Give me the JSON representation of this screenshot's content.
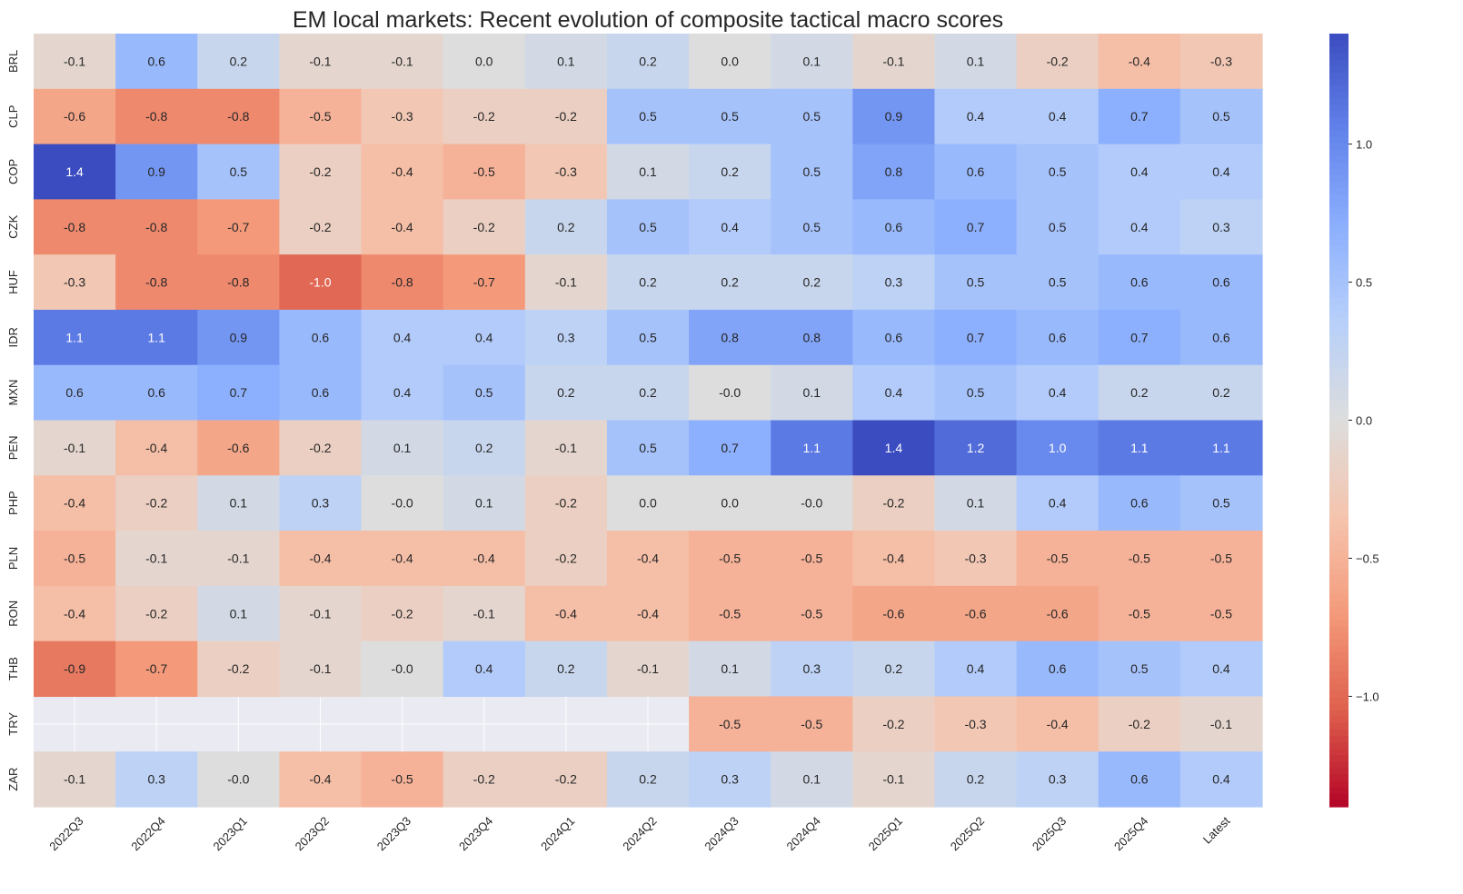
{
  "chart_data": {
    "type": "heatmap",
    "title": "EM local markets: Recent evolution of composite tactical macro scores",
    "xlabel": "",
    "ylabel": "",
    "colormap": "coolwarm_r",
    "colors": {
      "high": "#3b4cc0",
      "mid": "#dddddd",
      "low": "#b40426",
      "missing": "#eaeaf2"
    },
    "vmin": -1.4,
    "vmax": 1.4,
    "colorbar_ticks": [
      "1.0",
      "0.5",
      "0.0",
      "−0.5",
      "−1.0"
    ],
    "colorbar_tick_values": [
      1.0,
      0.5,
      0.0,
      -0.5,
      -1.0
    ],
    "columns": [
      "2022Q3",
      "2022Q4",
      "2023Q1",
      "2023Q2",
      "2023Q3",
      "2023Q4",
      "2024Q1",
      "2024Q2",
      "2024Q3",
      "2024Q4",
      "2025Q1",
      "2025Q2",
      "2025Q3",
      "2025Q4",
      "Latest"
    ],
    "rows": [
      "BRL",
      "CLP",
      "COP",
      "CZK",
      "HUF",
      "IDR",
      "MXN",
      "PEN",
      "PHP",
      "PLN",
      "RON",
      "THB",
      "TRY",
      "ZAR"
    ],
    "values": [
      [
        "-0.1",
        "0.6",
        "0.2",
        "-0.1",
        "-0.1",
        "0.0",
        "0.1",
        "0.2",
        "0.0",
        "0.1",
        "-0.1",
        "0.1",
        "-0.2",
        "-0.4",
        "-0.3"
      ],
      [
        "-0.6",
        "-0.8",
        "-0.8",
        "-0.5",
        "-0.3",
        "-0.2",
        "-0.2",
        "0.5",
        "0.5",
        "0.5",
        "0.9",
        "0.4",
        "0.4",
        "0.7",
        "0.5"
      ],
      [
        "1.4",
        "0.9",
        "0.5",
        "-0.2",
        "-0.4",
        "-0.5",
        "-0.3",
        "0.1",
        "0.2",
        "0.5",
        "0.8",
        "0.6",
        "0.5",
        "0.4",
        "0.4"
      ],
      [
        "-0.8",
        "-0.8",
        "-0.7",
        "-0.2",
        "-0.4",
        "-0.2",
        "0.2",
        "0.5",
        "0.4",
        "0.5",
        "0.6",
        "0.7",
        "0.5",
        "0.4",
        "0.3"
      ],
      [
        "-0.3",
        "-0.8",
        "-0.8",
        "-1.0",
        "-0.8",
        "-0.7",
        "-0.1",
        "0.2",
        "0.2",
        "0.2",
        "0.3",
        "0.5",
        "0.5",
        "0.6",
        "0.6"
      ],
      [
        "1.1",
        "1.1",
        "0.9",
        "0.6",
        "0.4",
        "0.4",
        "0.3",
        "0.5",
        "0.8",
        "0.8",
        "0.6",
        "0.7",
        "0.6",
        "0.7",
        "0.6"
      ],
      [
        "0.6",
        "0.6",
        "0.7",
        "0.6",
        "0.4",
        "0.5",
        "0.2",
        "0.2",
        "-0.0",
        "0.1",
        "0.4",
        "0.5",
        "0.4",
        "0.2",
        "0.2"
      ],
      [
        "-0.1",
        "-0.4",
        "-0.6",
        "-0.2",
        "0.1",
        "0.2",
        "-0.1",
        "0.5",
        "0.7",
        "1.1",
        "1.4",
        "1.2",
        "1.0",
        "1.1",
        "1.1"
      ],
      [
        "-0.4",
        "-0.2",
        "0.1",
        "0.3",
        "-0.0",
        "0.1",
        "-0.2",
        "0.0",
        "0.0",
        "-0.0",
        "-0.2",
        "0.1",
        "0.4",
        "0.6",
        "0.5"
      ],
      [
        "-0.5",
        "-0.1",
        "-0.1",
        "-0.4",
        "-0.4",
        "-0.4",
        "-0.2",
        "-0.4",
        "-0.5",
        "-0.5",
        "-0.4",
        "-0.3",
        "-0.5",
        "-0.5",
        "-0.5"
      ],
      [
        "-0.4",
        "-0.2",
        "0.1",
        "-0.1",
        "-0.2",
        "-0.1",
        "-0.4",
        "-0.4",
        "-0.5",
        "-0.5",
        "-0.6",
        "-0.6",
        "-0.6",
        "-0.5",
        "-0.5"
      ],
      [
        "-0.9",
        "-0.7",
        "-0.2",
        "-0.1",
        "-0.0",
        "0.4",
        "0.2",
        "-0.1",
        "0.1",
        "0.3",
        "0.2",
        "0.4",
        "0.6",
        "0.5",
        "0.4"
      ],
      [
        null,
        null,
        null,
        null,
        null,
        null,
        null,
        null,
        "-0.5",
        "-0.5",
        "-0.2",
        "-0.3",
        "-0.4",
        "-0.2",
        "-0.1"
      ],
      [
        "-0.1",
        "0.3",
        "-0.0",
        "-0.4",
        "-0.5",
        "-0.2",
        "-0.2",
        "0.2",
        "0.3",
        "0.1",
        "-0.1",
        "0.2",
        "0.3",
        "0.6",
        "0.4"
      ]
    ]
  }
}
